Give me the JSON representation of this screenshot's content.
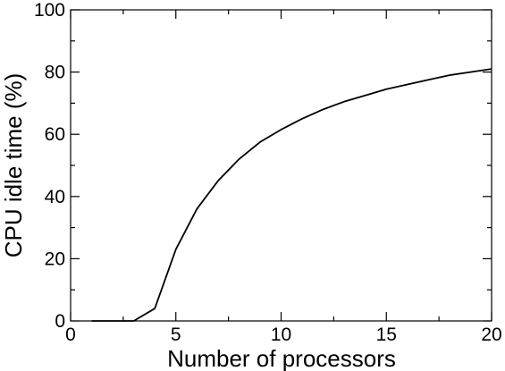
{
  "chart_data": {
    "type": "line",
    "title": "",
    "xlabel": "Number of processors",
    "ylabel": "CPU idle time (%)",
    "xlim": [
      0,
      20
    ],
    "ylim": [
      0,
      100
    ],
    "x_ticks": [
      0,
      5,
      10,
      15,
      20
    ],
    "y_ticks": [
      0,
      20,
      40,
      60,
      80,
      100
    ],
    "grid": false,
    "series": [
      {
        "x": [
          1,
          2,
          3,
          4,
          5,
          6,
          7,
          8,
          9,
          10,
          11,
          12,
          13,
          14,
          15,
          16,
          17,
          18,
          19,
          20
        ],
        "y": [
          0,
          0,
          0,
          4,
          23,
          36,
          45,
          52,
          57.5,
          61.5,
          65,
          68,
          70.5,
          72.5,
          74.5,
          76,
          77.5,
          79,
          80,
          81
        ]
      }
    ]
  },
  "colors": {
    "line": "#000000",
    "axes": "#000000",
    "background": "#ffffff"
  }
}
